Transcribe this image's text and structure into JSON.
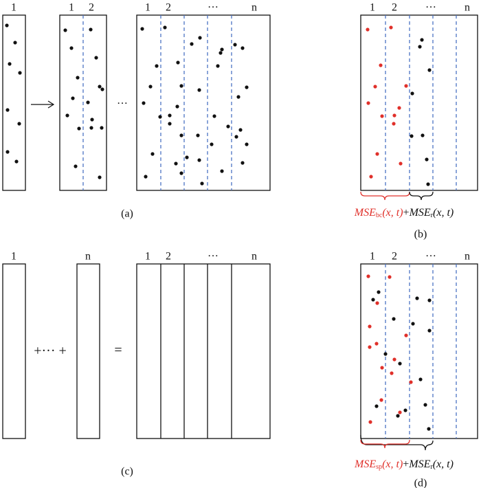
{
  "panel_a": {
    "col1_label": "1",
    "mid_labels": [
      "1",
      "2"
    ],
    "ellipsis": "···",
    "big_labels": [
      "1",
      "2",
      "···",
      "n"
    ],
    "caption": "(a)"
  },
  "panel_b": {
    "labels": [
      "1",
      "2",
      "···",
      "n"
    ],
    "formula": {
      "term1": "MSE",
      "sub1": "bc",
      "args1": "(x, t)",
      "plus": "+",
      "term2": "MSE",
      "sub2": "r",
      "args2": "(x, t)"
    },
    "caption": "(b)"
  },
  "panel_c": {
    "left_label": "1",
    "right_label": "n",
    "plus_text": "+··· +",
    "equals": "=",
    "labels": [
      "1",
      "2",
      "···",
      "n"
    ],
    "caption": "(c)"
  },
  "panel_d": {
    "labels": [
      "1",
      "2",
      "···",
      "n"
    ],
    "formula": {
      "term1": "MSE",
      "sub1": "sp",
      "args1": "(x, t)",
      "plus": "+",
      "term2": "MSE",
      "sub2": "r",
      "args2": "(x, t)"
    },
    "caption": "(d)"
  }
}
